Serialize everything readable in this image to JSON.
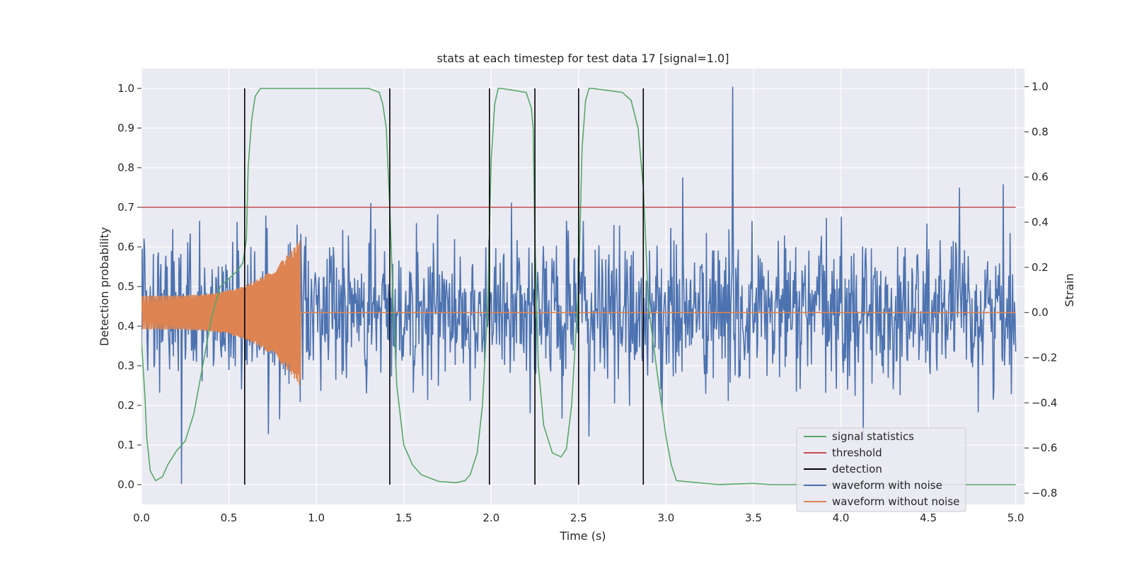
{
  "chart_data": {
    "type": "line",
    "title": "stats at each timestep for test data 17 [signal=1.0]",
    "xlabel": "Time (s)",
    "ylabel_left": "Detection probability",
    "ylabel_right": "Strain",
    "xlim": [
      0.0,
      5.05
    ],
    "ylim_left": [
      -0.05,
      1.05
    ],
    "ylim_right": [
      -0.85,
      1.08
    ],
    "x_ticks": [
      0.0,
      0.5,
      1.0,
      1.5,
      2.0,
      2.5,
      3.0,
      3.5,
      4.0,
      4.5,
      5.0
    ],
    "x_tick_labels": [
      "0.0",
      "0.5",
      "1.0",
      "1.5",
      "2.0",
      "2.5",
      "3.0",
      "3.5",
      "4.0",
      "4.5",
      "5.0"
    ],
    "y_left_ticks": [
      0.0,
      0.1,
      0.2,
      0.3,
      0.4,
      0.5,
      0.6,
      0.7,
      0.8,
      0.9,
      1.0
    ],
    "y_left_tick_labels": [
      "0.0",
      "0.1",
      "0.2",
      "0.3",
      "0.4",
      "0.5",
      "0.6",
      "0.7",
      "0.8",
      "0.9",
      "1.0"
    ],
    "y_right_ticks": [
      -0.8,
      -0.6,
      -0.4,
      -0.2,
      0.0,
      0.2,
      0.4,
      0.6,
      0.8,
      1.0
    ],
    "y_right_tick_labels": [
      "−0.8",
      "−0.6",
      "−0.4",
      "−0.2",
      "0.0",
      "0.2",
      "0.4",
      "0.6",
      "0.8",
      "1.0"
    ],
    "grid": true,
    "legend_position": "lower-right",
    "threshold": 0.7,
    "detections": [
      0.59,
      1.42,
      1.99,
      2.25,
      2.5,
      2.87
    ],
    "signal_statistics": {
      "name": "signal statistics",
      "axis": "left",
      "x": [
        0.0,
        0.02,
        0.03,
        0.05,
        0.08,
        0.12,
        0.15,
        0.2,
        0.25,
        0.3,
        0.35,
        0.4,
        0.45,
        0.5,
        0.55,
        0.58,
        0.6,
        0.61,
        0.63,
        0.65,
        0.68,
        0.7,
        1.3,
        1.36,
        1.38,
        1.4,
        1.42,
        1.44,
        1.46,
        1.5,
        1.55,
        1.6,
        1.7,
        1.8,
        1.85,
        1.88,
        1.92,
        1.95,
        1.98,
        2.0,
        2.02,
        2.04,
        2.06,
        2.2,
        2.23,
        2.24,
        2.25,
        2.27,
        2.3,
        2.35,
        2.4,
        2.43,
        2.46,
        2.5,
        2.52,
        2.54,
        2.56,
        2.58,
        2.75,
        2.8,
        2.84,
        2.87,
        2.9,
        2.95,
        3.0,
        3.03,
        3.06,
        3.3,
        3.5,
        3.6,
        4.0,
        4.5,
        5.0
      ],
      "values": [
        0.36,
        0.22,
        0.12,
        0.035,
        0.01,
        0.02,
        0.05,
        0.085,
        0.11,
        0.18,
        0.3,
        0.42,
        0.5,
        0.52,
        0.54,
        0.56,
        0.62,
        0.8,
        0.92,
        0.98,
        1.0,
        1.0,
        1.0,
        0.99,
        0.96,
        0.9,
        0.7,
        0.45,
        0.25,
        0.1,
        0.05,
        0.025,
        0.008,
        0.005,
        0.01,
        0.025,
        0.08,
        0.2,
        0.45,
        0.82,
        0.96,
        1.0,
        1.0,
        0.99,
        0.95,
        0.9,
        0.62,
        0.3,
        0.15,
        0.08,
        0.07,
        0.09,
        0.2,
        0.5,
        0.85,
        0.97,
        1.0,
        1.0,
        0.99,
        0.97,
        0.9,
        0.75,
        0.45,
        0.28,
        0.12,
        0.05,
        0.01,
        0.0,
        0.003,
        0.0,
        0.0,
        0.0,
        0.0
      ],
      "color": "#55a868"
    },
    "waveform_with_noise": {
      "name": "waveform with noise",
      "axis": "right",
      "sample_count": 1400,
      "std": 0.17,
      "max": 1.0,
      "min": -0.8,
      "color": "#4c72b0"
    },
    "waveform_without_noise": {
      "name": "waveform without noise",
      "axis": "right",
      "x_start": 0.0,
      "x_end": 0.91,
      "amplitude_start": 0.075,
      "amplitude_end": 0.33,
      "cycles": 90,
      "color": "#dd8452"
    },
    "legend": [
      {
        "label": "signal statistics",
        "color": "#55a868"
      },
      {
        "label": "threshold",
        "color": "#c44e52"
      },
      {
        "label": "detection",
        "color": "#000000"
      },
      {
        "label": "waveform with noise",
        "color": "#4c72b0"
      },
      {
        "label": "waveform without noise",
        "color": "#dd8452"
      }
    ]
  },
  "colors": {
    "plot_background": "#eaeaf2",
    "grid": "#ffffff",
    "threshold": "#c44e52",
    "detection": "#000000"
  }
}
